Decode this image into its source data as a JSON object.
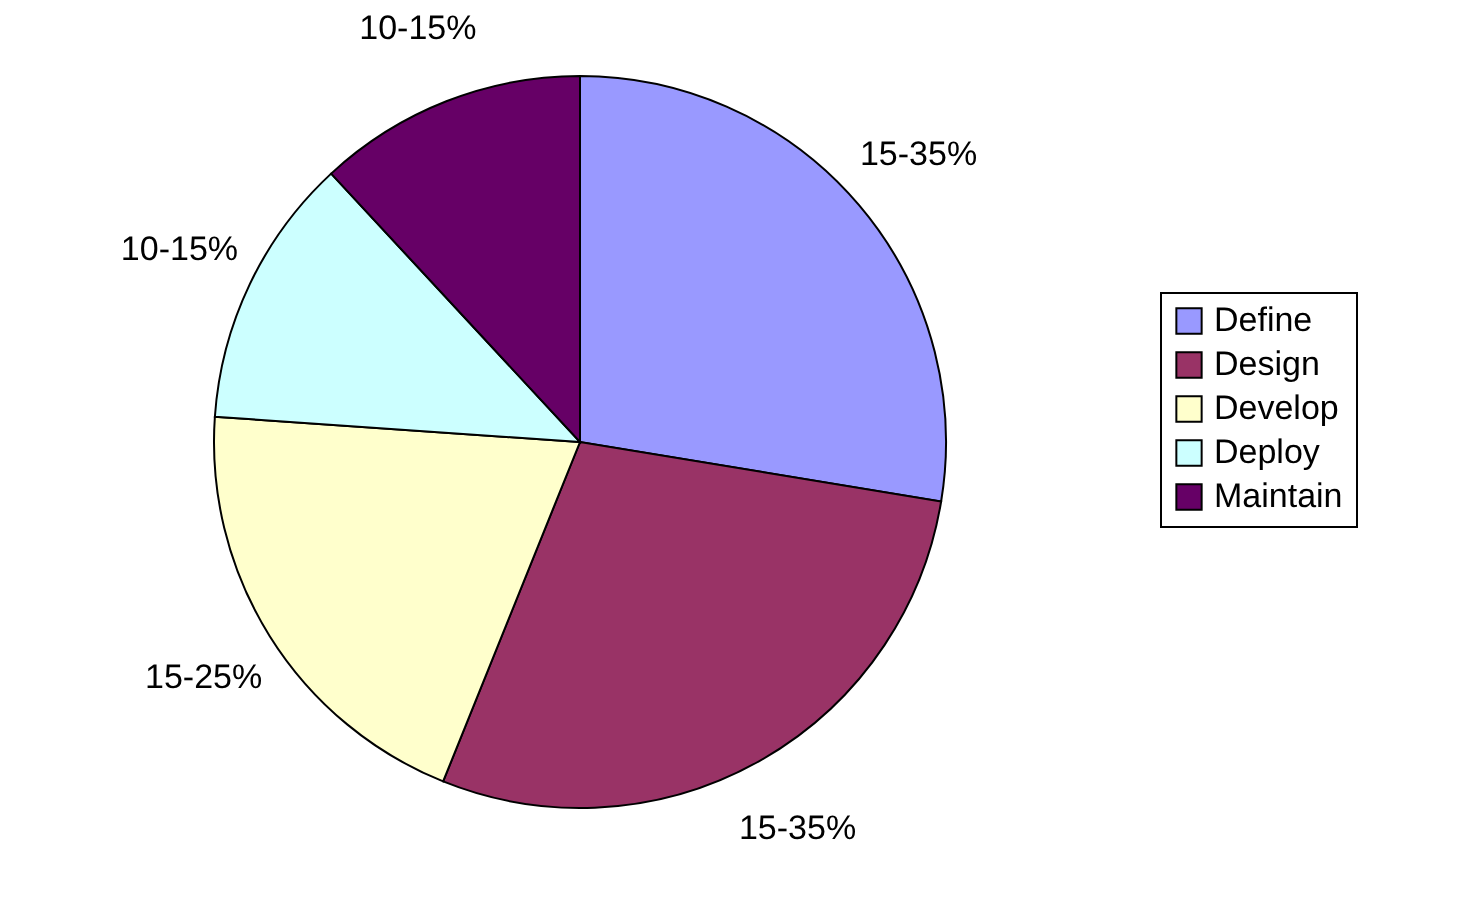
{
  "chart_data": {
    "type": "pie",
    "categories": [
      "Define",
      "Design",
      "Develop",
      "Deploy",
      "Maintain"
    ],
    "values": [
      27.6,
      28.5,
      20,
      12,
      11.9
    ],
    "colors": [
      "#9999ff",
      "#993366",
      "#ffffcc",
      "#ccffff",
      "#660066"
    ],
    "annotations": [
      "15-35%",
      "15-35%",
      "15-25%",
      "10-15%",
      "10-15%"
    ],
    "legend": "right"
  }
}
